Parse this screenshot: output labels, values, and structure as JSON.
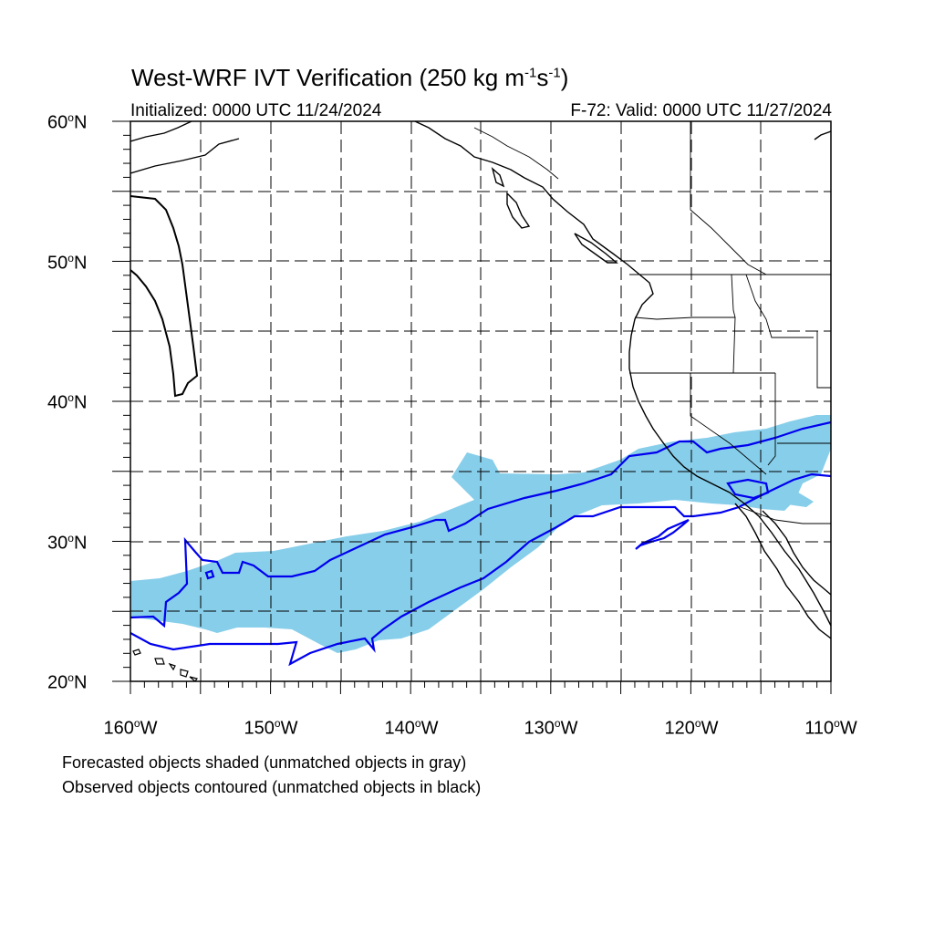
{
  "title": {
    "main": "West-WRF IVT Verification (250 kg m",
    "exp1": "-1",
    "mid": "s",
    "exp2": "-1",
    "end": ")"
  },
  "init_label": "Initialized: 0000 UTC 11/24/2024",
  "valid_label": "F-72: Valid: 0000 UTC 11/27/2024",
  "lat_labels": [
    {
      "deg": "60",
      "sup": "o",
      "hem": "N"
    },
    {
      "deg": "50",
      "sup": "o",
      "hem": "N"
    },
    {
      "deg": "40",
      "sup": "o",
      "hem": "N"
    },
    {
      "deg": "30",
      "sup": "o",
      "hem": "N"
    },
    {
      "deg": "20",
      "sup": "o",
      "hem": "N"
    }
  ],
  "lon_labels": [
    {
      "deg": "160",
      "sup": "o",
      "hem": "W"
    },
    {
      "deg": "150",
      "sup": "o",
      "hem": "W"
    },
    {
      "deg": "140",
      "sup": "o",
      "hem": "W"
    },
    {
      "deg": "130",
      "sup": "o",
      "hem": "W"
    },
    {
      "deg": "120",
      "sup": "o",
      "hem": "W"
    },
    {
      "deg": "110",
      "sup": "o",
      "hem": "W"
    }
  ],
  "notes": {
    "line1": "Forecasted objects shaded (unmatched objects in gray)",
    "line2": "Observed objects contoured (unmatched objects in black)"
  },
  "map_extent": {
    "lon": [
      -160,
      -110
    ],
    "lat": [
      20,
      60
    ]
  },
  "colors": {
    "forecast_fill": "#87ceea",
    "observed_contour": "#0000ee",
    "coast": "#000000",
    "grid": "#000000"
  }
}
